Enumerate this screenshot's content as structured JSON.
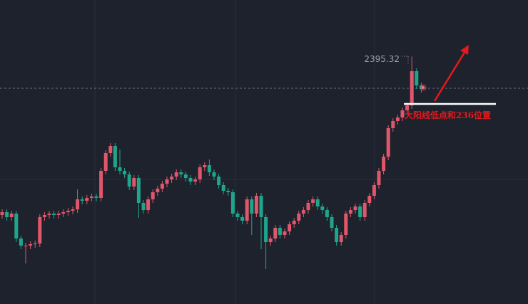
{
  "chart_data": {
    "type": "candlestick",
    "open": [
      2284,
      2286,
      2282.5,
      2285,
      2267.5,
      2262.5,
      2262.5,
      2263.5,
      2264,
      2282.5,
      2284,
      2285,
      2284,
      2285,
      2286,
      2287,
      2288,
      2295,
      2294,
      2296,
      2297,
      2296,
      2315,
      2327.5,
      2332.5,
      2317.5,
      2315,
      2312.5,
      2304,
      2310,
      2292.5,
      2287.5,
      2295,
      2300,
      2302.5,
      2306,
      2309,
      2311,
      2314,
      2312.5,
      2310,
      2307.5,
      2309,
      2317.5,
      2319,
      2314,
      2311,
      2305,
      2301,
      2300,
      2285,
      2282.5,
      2280,
      2295,
      2285,
      2297.5,
      2282.5,
      2265,
      2267.5,
      2275,
      2270,
      2272.5,
      2277.5,
      2280,
      2285,
      2287.5,
      2292.5,
      2295,
      2290,
      2287.5,
      2282.5,
      2275,
      2265,
      2270,
      2285,
      2287.5,
      2290,
      2282.5,
      2292.5,
      2297.5,
      2305,
      2315,
      2325,
      2345,
      2350,
      2352.5,
      2357.5,
      2361,
      2385,
      2375
    ],
    "high": [
      2288,
      2288,
      2287,
      2287,
      2269.5,
      2264.5,
      2265.5,
      2266,
      2284.5,
      2286,
      2287,
      2287,
      2287,
      2288,
      2289,
      2290,
      2302,
      2297,
      2298,
      2299,
      2299,
      2317,
      2329.5,
      2334.5,
      2334.5,
      2330,
      2317,
      2314.5,
      2312,
      2312,
      2294.5,
      2297,
      2302,
      2304.5,
      2308,
      2311,
      2313,
      2316,
      2316,
      2314.5,
      2312,
      2311,
      2319.5,
      2321,
      2323,
      2316,
      2313,
      2307,
      2303,
      2302,
      2287,
      2284.5,
      2297,
      2297,
      2299.5,
      2299.5,
      2284.5,
      2269.5,
      2277,
      2277,
      2274.5,
      2279.5,
      2282,
      2287,
      2289.5,
      2294.5,
      2297,
      2297,
      2292,
      2289.5,
      2284.5,
      2277,
      2272,
      2287,
      2289.5,
      2292,
      2292,
      2294.5,
      2299.5,
      2307,
      2317,
      2327,
      2347,
      2352,
      2354.5,
      2359.5,
      2363,
      2395.32,
      2387,
      2377
    ],
    "low": [
      2281.5,
      2280,
      2280,
      2265,
      2260,
      2250,
      2260,
      2261,
      2261.5,
      2280,
      2281.5,
      2281.5,
      2281.5,
      2282.5,
      2283.5,
      2284.5,
      2285.5,
      2291.5,
      2291.5,
      2293.5,
      2293.5,
      2293.5,
      2312.5,
      2325,
      2315,
      2312.5,
      2310,
      2301.5,
      2301.5,
      2282,
      2285,
      2285,
      2292.5,
      2297.5,
      2300,
      2303.5,
      2306.5,
      2308.5,
      2310,
      2307.5,
      2305,
      2305,
      2306.5,
      2315,
      2311.5,
      2308.5,
      2302.5,
      2298.5,
      2297.5,
      2282.5,
      2280,
      2277.5,
      2277.5,
      2270,
      2282.5,
      2260,
      2246,
      2262.5,
      2265,
      2267.5,
      2267.5,
      2270,
      2275,
      2277.5,
      2282.5,
      2285,
      2290,
      2287.5,
      2285,
      2280,
      2272.5,
      2262.5,
      2262.5,
      2267.5,
      2282.5,
      2285,
      2280,
      2280,
      2290,
      2295,
      2302.5,
      2312.5,
      2322.5,
      2342.5,
      2347.5,
      2350,
      2355,
      2358.5,
      2372.5,
      2370
    ],
    "close": [
      2286,
      2282.5,
      2285,
      2267.5,
      2262.5,
      2262.5,
      2263.5,
      2264,
      2282.5,
      2284,
      2285,
      2284,
      2285,
      2286,
      2287,
      2288,
      2295,
      2294,
      2296,
      2297,
      2296,
      2315,
      2327.5,
      2332.5,
      2317.5,
      2315,
      2312.5,
      2304,
      2310,
      2292.5,
      2287.5,
      2295,
      2300,
      2302.5,
      2306,
      2309,
      2311,
      2314,
      2312.5,
      2310,
      2307.5,
      2309,
      2317.5,
      2319,
      2314,
      2311,
      2305,
      2301,
      2300,
      2285,
      2282.5,
      2280,
      2295,
      2285,
      2297.5,
      2282.5,
      2265,
      2267.5,
      2275,
      2270,
      2272.5,
      2277.5,
      2280,
      2285,
      2287.5,
      2292.5,
      2295,
      2290,
      2287.5,
      2282.5,
      2275,
      2265,
      2270,
      2285,
      2287.5,
      2290,
      2282.5,
      2292.5,
      2297.5,
      2305,
      2315,
      2325,
      2345,
      2350,
      2352.5,
      2357.5,
      2361,
      2385,
      2375,
      2372.5
    ],
    "up_color": "#e0566a",
    "down_color": "#1fa58c",
    "ylim": [
      2221.5,
      2435
    ],
    "annotation": "大阳线低点和236位置"
  }
}
